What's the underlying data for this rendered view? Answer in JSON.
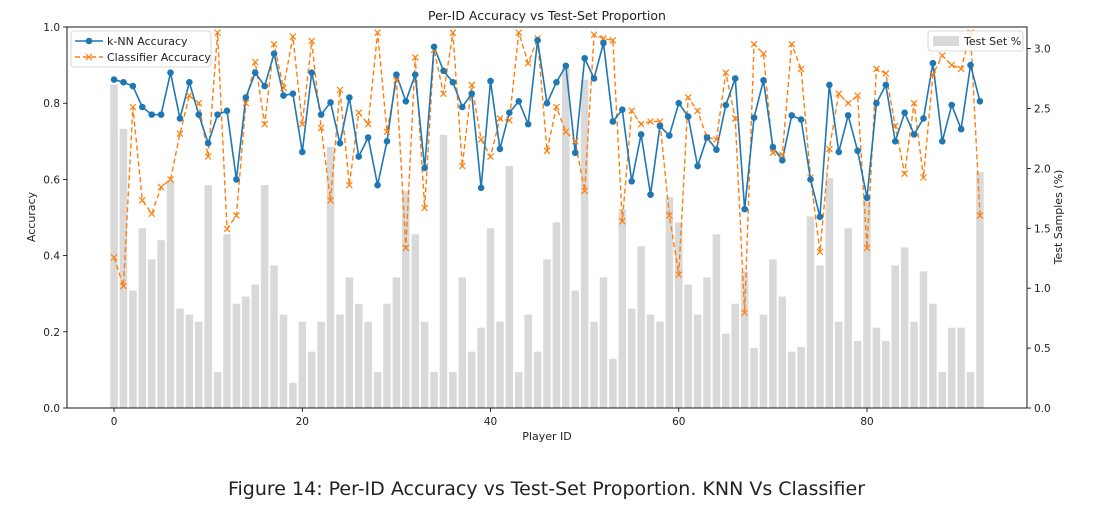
{
  "chart_data": {
    "type": "bar+line",
    "title": "Per-ID Accuracy vs Test-Set Proportion",
    "xlabel": "Player ID",
    "ylabel_left": "Accuracy",
    "ylabel_right": "Test Samples (%)",
    "xlim": [
      -5,
      97
    ],
    "ylim_left": [
      0.0,
      1.0
    ],
    "ylim_right": [
      0.0,
      3.18
    ],
    "x_ticks": [
      0,
      20,
      40,
      60,
      80
    ],
    "y_left_ticks": [
      "0.0",
      "0.2",
      "0.4",
      "0.6",
      "0.8",
      "1.0"
    ],
    "y_right_ticks": [
      "0.0",
      "0.5",
      "1.0",
      "1.5",
      "2.0",
      "2.5",
      "3.0"
    ],
    "legend_left": {
      "position": "top-left",
      "entries": [
        "k-NN Accuracy",
        "Classifier Accuracy"
      ]
    },
    "legend_right": {
      "position": "top-right",
      "entries": [
        "Test Set %"
      ]
    },
    "colors": {
      "knn": "#1f77b4",
      "classifier": "#ff7f0e",
      "bars": "#d9d9d9"
    },
    "ids": [
      0,
      1,
      2,
      3,
      4,
      5,
      6,
      7,
      8,
      9,
      10,
      11,
      12,
      13,
      14,
      15,
      16,
      17,
      18,
      19,
      20,
      21,
      22,
      23,
      24,
      25,
      26,
      27,
      28,
      29,
      30,
      31,
      32,
      33,
      34,
      35,
      36,
      37,
      38,
      39,
      40,
      41,
      42,
      43,
      44,
      45,
      46,
      47,
      48,
      49,
      50,
      51,
      52,
      53,
      54,
      55,
      56,
      57,
      58,
      59,
      60,
      61,
      62,
      63,
      64,
      65,
      66,
      67,
      68,
      69,
      70,
      71,
      72,
      73,
      74,
      75,
      76,
      77,
      78,
      79,
      80,
      81,
      82,
      83,
      84,
      85,
      86,
      87,
      88,
      89,
      90,
      91,
      92
    ],
    "test_set_pct": [
      2.7,
      2.33,
      0.98,
      1.5,
      1.24,
      1.4,
      1.9,
      0.83,
      0.78,
      0.72,
      1.86,
      0.3,
      1.45,
      0.87,
      0.93,
      1.03,
      1.86,
      1.19,
      0.78,
      0.21,
      0.72,
      0.47,
      0.72,
      2.18,
      0.78,
      1.09,
      0.87,
      0.72,
      0.3,
      0.87,
      1.09,
      1.81,
      1.45,
      0.72,
      0.3,
      2.28,
      0.3,
      1.09,
      0.47,
      0.67,
      1.5,
      0.72,
      2.02,
      0.3,
      0.78,
      0.47,
      1.24,
      1.55,
      2.84,
      0.98,
      2.74,
      0.72,
      1.09,
      0.41,
      1.66,
      0.83,
      1.35,
      0.78,
      0.72,
      1.76,
      1.55,
      1.03,
      0.78,
      1.09,
      1.45,
      0.62,
      0.87,
      1.14,
      0.5,
      0.78,
      1.24,
      0.93,
      0.47,
      0.51,
      1.6,
      1.19,
      1.92,
      0.72,
      1.5,
      0.56,
      1.76,
      0.67,
      0.56,
      1.19,
      1.34,
      0.72,
      1.14,
      0.87,
      0.3,
      0.67,
      0.67,
      0.3,
      1.97
    ],
    "knn_accuracy": [
      0.862,
      0.855,
      0.845,
      0.79,
      0.77,
      0.77,
      0.88,
      0.76,
      0.855,
      0.77,
      0.695,
      0.77,
      0.78,
      0.6,
      0.815,
      0.88,
      0.845,
      0.93,
      0.82,
      0.825,
      0.672,
      0.88,
      0.77,
      0.802,
      0.695,
      0.815,
      0.66,
      0.71,
      0.585,
      0.7,
      0.875,
      0.805,
      0.875,
      0.63,
      0.948,
      0.885,
      0.855,
      0.79,
      0.825,
      0.578,
      0.858,
      0.68,
      0.775,
      0.805,
      0.745,
      0.965,
      0.8,
      0.855,
      0.898,
      0.67,
      0.918,
      0.865,
      0.958,
      0.752,
      0.783,
      0.595,
      0.718,
      0.56,
      0.74,
      0.715,
      0.8,
      0.765,
      0.635,
      0.71,
      0.678,
      0.795,
      0.865,
      0.522,
      0.762,
      0.86,
      0.685,
      0.65,
      0.768,
      0.757,
      0.6,
      0.502,
      0.848,
      0.672,
      0.768,
      0.675,
      0.552,
      0.8,
      0.848,
      0.7,
      0.775,
      0.718,
      0.76,
      0.905,
      0.7,
      0.795,
      0.732,
      0.9,
      0.805
    ],
    "classifier_accuracy": [
      0.395,
      0.32,
      0.79,
      0.545,
      0.51,
      0.58,
      0.6,
      0.72,
      0.82,
      0.8,
      0.66,
      0.985,
      0.47,
      0.505,
      0.8,
      0.908,
      0.745,
      0.955,
      0.84,
      0.975,
      0.745,
      0.963,
      0.735,
      0.545,
      0.835,
      0.585,
      0.775,
      0.745,
      0.985,
      0.725,
      0.86,
      0.42,
      0.92,
      0.525,
      0.94,
      0.825,
      0.985,
      0.635,
      0.848,
      0.705,
      0.66,
      0.76,
      0.755,
      0.985,
      0.905,
      0.97,
      0.675,
      0.79,
      0.725,
      0.7,
      0.57,
      0.98,
      0.97,
      0.965,
      0.49,
      0.78,
      0.745,
      0.752,
      0.752,
      0.505,
      0.35,
      0.815,
      0.78,
      0.71,
      0.705,
      0.88,
      0.76,
      0.25,
      0.955,
      0.93,
      0.67,
      0.665,
      0.955,
      0.89,
      0.605,
      0.41,
      0.68,
      0.825,
      0.8,
      0.82,
      0.42,
      0.89,
      0.878,
      0.74,
      0.615,
      0.8,
      0.605,
      0.875,
      0.925,
      0.9,
      0.89,
      0.985,
      0.505
    ]
  },
  "caption": "Figure 14: Per-ID Accuracy vs Test-Set Proportion. KNN Vs Classifier"
}
